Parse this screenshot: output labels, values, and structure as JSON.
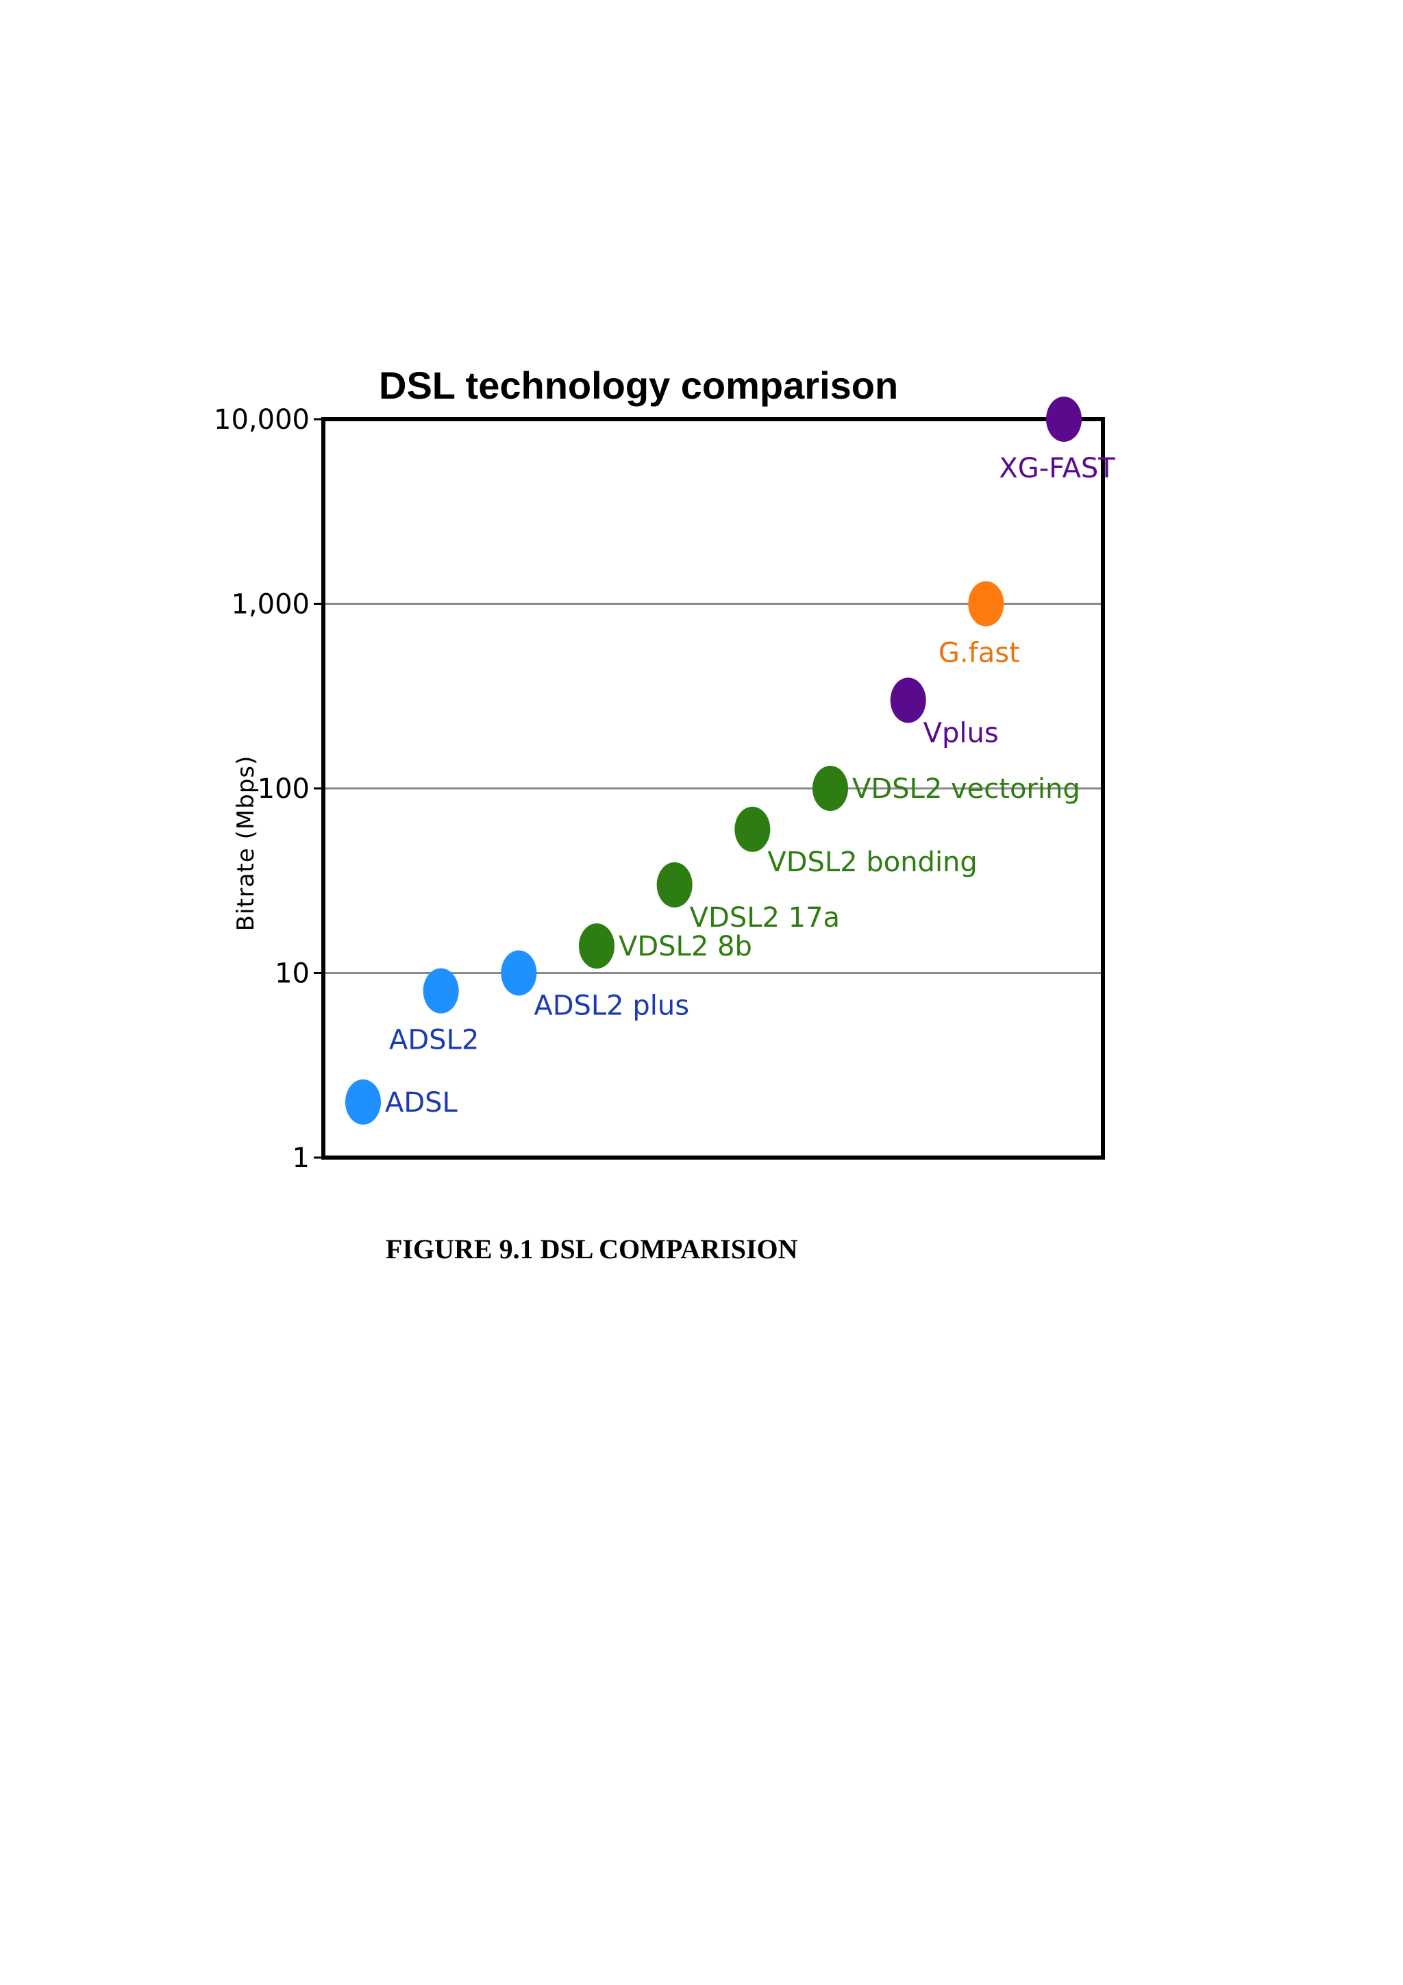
{
  "chart_data": {
    "type": "scatter",
    "title": "DSL technology comparison",
    "xlabel": "",
    "ylabel": "Bitrate (Mbps)",
    "yscale": "log",
    "ylim": [
      1,
      10000
    ],
    "yticks": [
      {
        "value": 1,
        "label": "1"
      },
      {
        "value": 10,
        "label": "10"
      },
      {
        "value": 100,
        "label": "100"
      },
      {
        "value": 1000,
        "label": "1,000"
      },
      {
        "value": 10000,
        "label": "10,000"
      }
    ],
    "grid": true,
    "legend": "none",
    "points": [
      {
        "label": "ADSL",
        "y": 2,
        "color": "#1E90FF",
        "label_color": "#1A3BB3",
        "label_pos": "right"
      },
      {
        "label": "ADSL2",
        "y": 8,
        "color": "#1E90FF",
        "label_color": "#1A3BB3",
        "label_pos": "below"
      },
      {
        "label": "ADSL2 plus",
        "y": 10,
        "color": "#1E90FF",
        "label_color": "#1A3BB3",
        "label_pos": "below-right"
      },
      {
        "label": "VDSL2 8b",
        "y": 14,
        "color": "#2E7D12",
        "label_color": "#2E7D12",
        "label_pos": "right"
      },
      {
        "label": "VDSL2 17a",
        "y": 30,
        "color": "#2E7D12",
        "label_color": "#2E7D12",
        "label_pos": "below-right"
      },
      {
        "label": "VDSL2 bonding",
        "y": 60,
        "color": "#2E7D12",
        "label_color": "#2E7D12",
        "label_pos": "below-right"
      },
      {
        "label": "VDSL2 vectoring",
        "y": 100,
        "color": "#2E7D12",
        "label_color": "#2E7D12",
        "label_pos": "right"
      },
      {
        "label": "Vplus",
        "y": 300,
        "color": "#5A0A8C",
        "label_color": "#5A0A8C",
        "label_pos": "below-right"
      },
      {
        "label": "G.fast",
        "y": 1000,
        "color": "#FF7A0F",
        "label_color": "#E8740E",
        "label_pos": "below"
      },
      {
        "label": "XG-FAST",
        "y": 10000,
        "color": "#5A0A8C",
        "label_color": "#5A0A8C",
        "label_pos": "below"
      }
    ]
  },
  "caption": "FIGURE 9.1 DSL COMPARISION"
}
